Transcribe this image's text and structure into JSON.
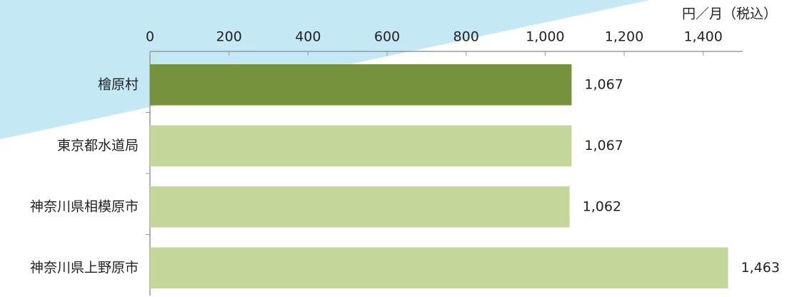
{
  "chart_data": {
    "type": "hbar",
    "unit_label": "円／月（税込）",
    "categories": [
      "檜原村",
      "東京都水道局",
      "神奈川県相模原市",
      "神奈川県上野原市"
    ],
    "values": [
      1067,
      1067,
      1062,
      1463
    ],
    "value_labels": [
      "1,067",
      "1,067",
      "1,062",
      "1,463"
    ],
    "colors": [
      "#77923c",
      "#c4d79b",
      "#c4d79b",
      "#c4d79b"
    ],
    "xlim": [
      0,
      1500
    ],
    "xticks": [
      0,
      200,
      400,
      600,
      800,
      {
        "value": 1000,
        "label": "1,000"
      },
      {
        "value": 1200,
        "label": "1,200"
      },
      {
        "value": 1400,
        "label": "1,400"
      }
    ]
  }
}
